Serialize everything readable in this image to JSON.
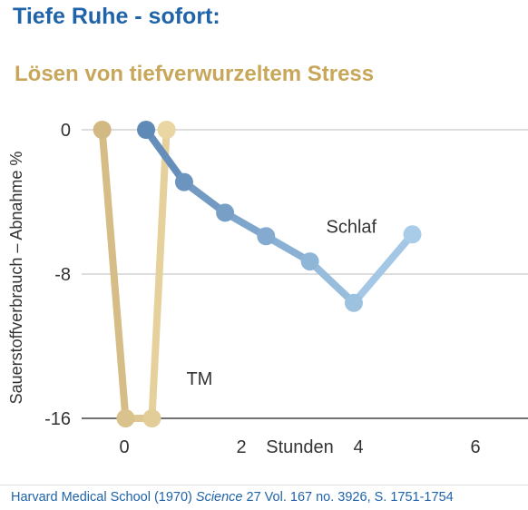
{
  "header": {
    "title": "Tiefe Ruhe - sofort:",
    "subtitle": "Lösen von tiefverwurzeltem Stress"
  },
  "citation": {
    "prefix": "Harvard Medical School (1970) ",
    "journal": "Science",
    "suffix": " 27 Vol. 167 no. 3926, S. 1751-1754"
  },
  "colors": {
    "title": "#1f63a8",
    "subtitle": "#c8a65a",
    "tm_line": "#d9c08a",
    "schlaf_line_dark": "#6e96c0",
    "schlaf_line_light": "#a9cde8",
    "grid": "#bdbdbd",
    "axis_text": "#333333"
  },
  "chart_data": {
    "type": "line",
    "ylabel": "Sauerstoffverbrauch – Abnahme %",
    "xlabel": "Stunden",
    "x_ticks": [
      "0",
      "2",
      "4",
      "6"
    ],
    "y_ticks": [
      "0",
      "-8",
      "-16"
    ],
    "xlim": [
      -0.8,
      6.5
    ],
    "ylim": [
      -16,
      0
    ],
    "grid": true,
    "series": [
      {
        "name": "TM",
        "x": [
          -0.3,
          0.1,
          0.55,
          0.8
        ],
        "y": [
          0,
          -16,
          -16,
          0
        ]
      },
      {
        "name": "Schlaf",
        "x": [
          0.45,
          1.1,
          1.8,
          2.5,
          3.25,
          4.0,
          5.0
        ],
        "y": [
          0,
          -2.9,
          -4.6,
          -5.9,
          -7.3,
          -9.6,
          -5.8
        ]
      }
    ]
  }
}
